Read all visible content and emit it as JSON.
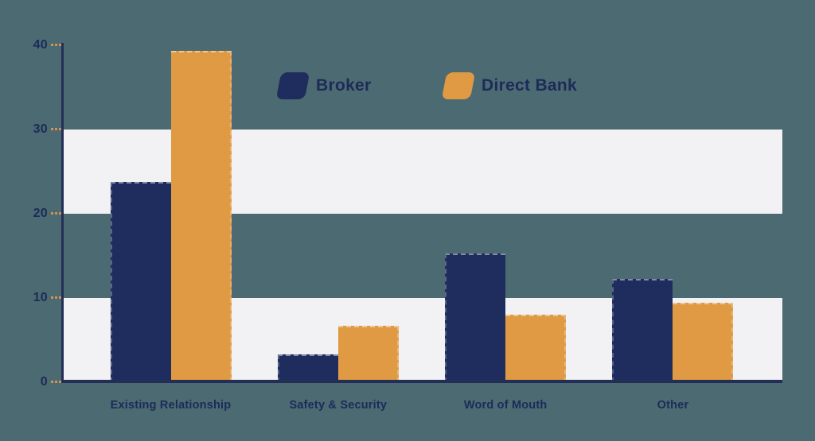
{
  "chart_data": {
    "type": "bar",
    "title": "",
    "categories": [
      "Existing Relationship",
      "Safety & Security",
      "Word of Mouth",
      "Other"
    ],
    "series": [
      {
        "name": "Broker",
        "color": "#1e2d5e",
        "values": [
          23.8,
          3.3,
          15.3,
          12.3
        ]
      },
      {
        "name": "Direct Bank",
        "color": "#df9a43",
        "values": [
          39.3,
          6.7,
          8.0,
          9.4
        ]
      }
    ],
    "xlabel": "",
    "ylabel": "",
    "ylim": [
      0,
      40
    ],
    "y_ticks": [
      0,
      10,
      20,
      30,
      40
    ],
    "y_tick_labels": [
      "0",
      "10",
      "20",
      "30",
      "40"
    ],
    "grid": "horizontal-bands",
    "band_ranges": [
      [
        0,
        10
      ],
      [
        20,
        30
      ]
    ],
    "legend_position": "top-center"
  },
  "colors": {
    "background": "#4c6a72",
    "band": "#f2f1f4",
    "axis": "#232e56",
    "tick": "#cf9257",
    "text": "#1d2b58",
    "broker": "#1e2d5e",
    "direct_bank": "#df9a43"
  }
}
